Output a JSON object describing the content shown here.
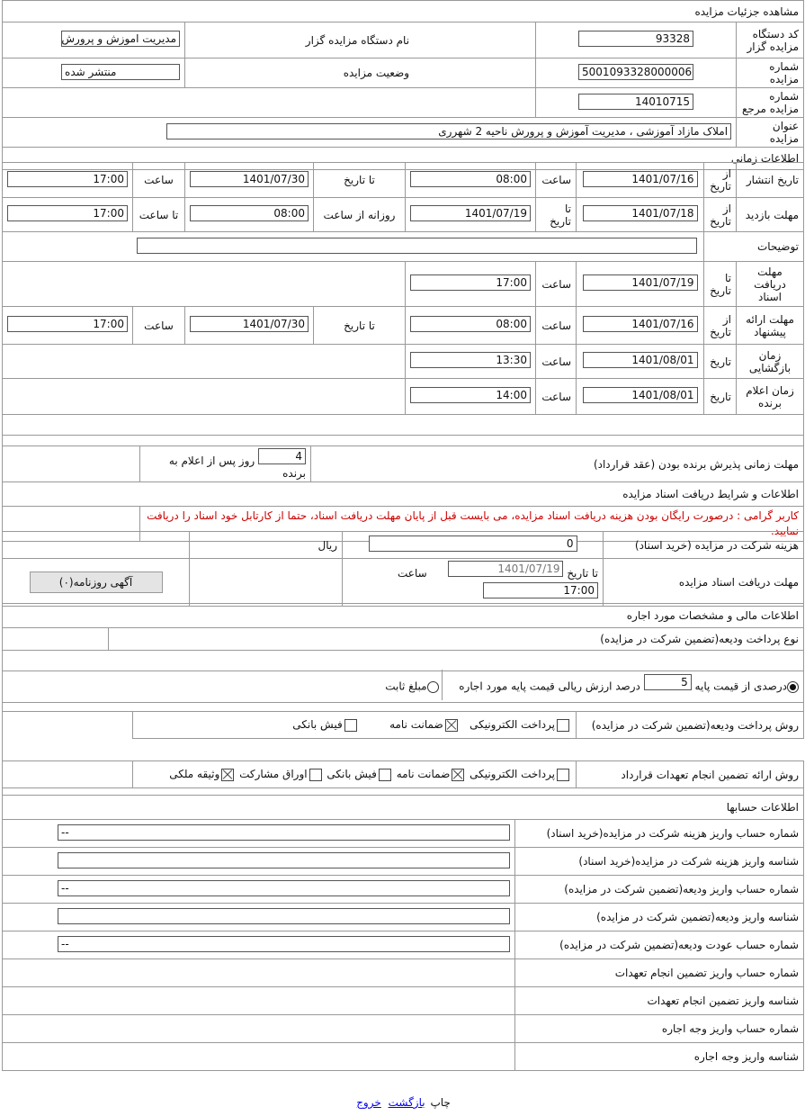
{
  "header": {
    "title": "مشاهده جزئیات مزایده"
  },
  "general": {
    "org_code_label": "کد دستگاه مزایده گزار",
    "org_code": "93328",
    "org_name_label": "نام دستگاه مزایده گزار",
    "org_name": "مدیریت اموزش و پرورش ن",
    "auction_no_label": "شماره مزایده",
    "auction_no": "5001093328000006",
    "status_label": "وضعیت مزایده",
    "status": "منتشر شده",
    "ref_no_label": "شماره مزایده مرجع",
    "ref_no": "14010715",
    "title_label": "عنوان مزایده",
    "title": "املاک مازاد آموزشی ، مدیریت آموزش و پرورش ناحیه 2 شهرری"
  },
  "time": {
    "section": "اطلاعات زمانی",
    "from_date": "از تاریخ",
    "to_date": "تا تاریخ",
    "time": "ساعت",
    "date": "تاریخ",
    "to_time": "تا ساعت",
    "daily_from": "روزانه از ساعت",
    "publish": {
      "label": "تاریخ انتشار",
      "from_date": "1401/07/16",
      "from_time": "08:00",
      "to_date": "1401/07/30",
      "to_time": "17:00"
    },
    "visit": {
      "label": "مهلت بازدید",
      "from_date": "1401/07/18",
      "to_date": "1401/07/19",
      "from_time": "08:00",
      "to_time": "17:00"
    },
    "notes_label": "توضیحات",
    "notes": "",
    "doc_deadline": {
      "label": "مهلت دریافت اسناد",
      "date": "1401/07/19",
      "time": "17:00"
    },
    "offer": {
      "label": "مهلت ارائه پیشنهاد",
      "from_date": "1401/07/16",
      "from_time": "08:00",
      "to_date": "1401/07/30",
      "to_time": "17:00"
    },
    "opening": {
      "label": "زمان بازگشایی",
      "date": "1401/08/01",
      "time": "13:30"
    },
    "winner": {
      "label": "زمان اعلام برنده",
      "date": "1401/08/01",
      "time": "14:00"
    }
  },
  "acceptance": {
    "label": "مهلت زمانی پذیرش برنده بودن (عقد قرارداد)",
    "days": "4",
    "suffix": "روز پس از اعلام به برنده"
  },
  "docs": {
    "section": "اطلاعات و شرایط دریافت اسناد مزایده",
    "notice": "کاربر گرامی : درصورت رایگان بودن هزینه دریافت اسناد مزایده، می بایست قبل از پایان مهلت دریافت اسناد، حتما از کارتابل خود اسناد را دریافت نمایید.",
    "notice_color": "#cc0000",
    "cost_label": "هزینه شرکت در مزایده (خرید اسناد)",
    "cost": "0",
    "currency": "ریال",
    "deadline_label": "مهلت دریافت اسناد مزایده",
    "to_date_label": "تا تاریخ",
    "date": "1401/07/19",
    "time_label": "ساعت",
    "time": "17:00",
    "ad_button": "آگهی روزنامه(۰)"
  },
  "finance": {
    "section": "اطلاعات مالی و مشخصات مورد اجاره",
    "deposit_type_label": "نوع پرداخت ودیعه(تضمین شرکت در مزایده)",
    "percent_option": "درصدی از قیمت پایه",
    "percent": "5",
    "percent_suffix": "درصد ارزش ریالی قیمت پایه مورد اجاره",
    "percent_selected": true,
    "fixed_option": "مبلغ ثابت",
    "fixed_selected": false,
    "deposit_method_label": "روش پرداخت ودیعه(تضمین شرکت در مزایده)",
    "deposit_methods": [
      {
        "label": "پرداخت الکترونیکی",
        "checked": false
      },
      {
        "label": "ضمانت نامه",
        "checked": true
      },
      {
        "label": "فیش بانکی",
        "checked": false
      }
    ],
    "guarantee_label": "روش ارائه تضمین انجام تعهدات قرارداد",
    "guarantee_methods": [
      {
        "label": "پرداخت الکترونیکی",
        "checked": false
      },
      {
        "label": "ضمانت نامه",
        "checked": true
      },
      {
        "label": "فیش بانکی",
        "checked": false
      },
      {
        "label": "اوراق مشارکت",
        "checked": false
      },
      {
        "label": "وثیقه ملکی",
        "checked": true
      }
    ]
  },
  "accounts": {
    "section": "اطلاعات حسابها",
    "rows": [
      {
        "label": "شماره حساب واریز هزینه شرکت در مزایده(خرید اسناد)",
        "value": "--"
      },
      {
        "label": "شناسه واریز هزینه شرکت در مزایده(خرید اسناد)",
        "value": ""
      },
      {
        "label": "شماره حساب واریز ودیعه(تضمین شرکت در مزایده)",
        "value": "--"
      },
      {
        "label": "شناسه واریز ودیعه(تضمین شرکت در مزایده)",
        "value": ""
      },
      {
        "label": "شماره حساب عودت ودیعه(تضمین شرکت در مزایده)",
        "value": "--"
      },
      {
        "label": "شماره حساب واریز تضمین انجام تعهدات"
      },
      {
        "label": "شناسه واریز تضمین انجام تعهدات"
      },
      {
        "label": "شماره حساب واریز وجه اجاره"
      },
      {
        "label": "شناسه واریز وجه اجاره"
      }
    ]
  },
  "footer": {
    "print": "چاپ",
    "back": "بازگشت",
    "exit": "خروج"
  }
}
